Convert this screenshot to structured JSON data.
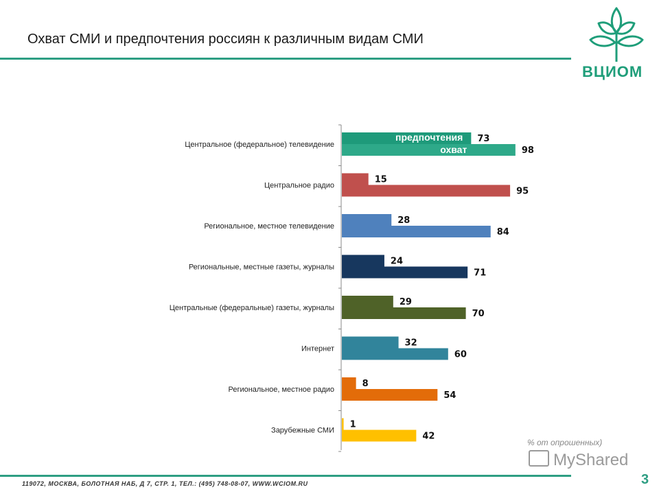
{
  "page": {
    "title": "Охват СМИ и предпочтения россиян к различным видам СМИ",
    "logo_text": "ВЦИОМ",
    "note": "% от опрошенных)",
    "watermark": "MyShared",
    "footer": "119072, МОСКВА, БОЛОТНАЯ НАБ, Д 7, СТР. 1, ТЕЛ.: (495) 748-08-07, WWW.WCIOM.RU",
    "page_number": "3"
  },
  "colors": {
    "accent": "#2e9e83",
    "logo": "#1f9e7a"
  },
  "chart_data": {
    "type": "bar",
    "orientation": "horizontal",
    "categories": [
      "Центральное (федеральное) телевидение",
      "Центральное радио",
      "Региональное, местное телевидение",
      "Региональные, местные газеты, журналы",
      "Центральные (федеральные) газеты, журналы",
      "Интернет",
      "Региональное, местное радио",
      "Зарубежные СМИ"
    ],
    "series": [
      {
        "name": "предпочтения",
        "values": [
          73,
          15,
          28,
          24,
          29,
          32,
          8,
          1
        ]
      },
      {
        "name": "охват",
        "values": [
          98,
          95,
          84,
          71,
          70,
          60,
          54,
          42
        ]
      }
    ],
    "colors_preference": [
      "#1e9a7a",
      "#c0504d",
      "#4f81bd",
      "#17375e",
      "#4f6228",
      "#31849b",
      "#e36c09",
      "#ffc000"
    ],
    "colors_reach": [
      "#2ea989",
      "#c0504d",
      "#4f81bd",
      "#17375e",
      "#4f6228",
      "#31849b",
      "#e36c09",
      "#ffc000"
    ],
    "xlim": [
      0,
      100
    ]
  }
}
